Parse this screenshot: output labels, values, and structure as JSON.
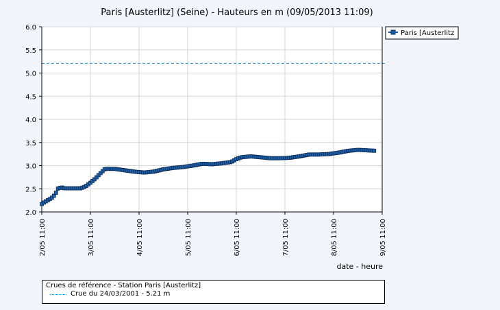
{
  "chart_data": {
    "type": "line",
    "title": "Paris [Austerlitz] (Seine) - Hauteurs en m (09/05/2013 11:09)",
    "xlabel": "date - heure",
    "ylabel": "",
    "xlim": [
      0,
      7
    ],
    "ylim": [
      2.0,
      6.0
    ],
    "x_ticks": [
      "2/05 11:00",
      "3/05 11:00",
      "4/05 11:00",
      "5/05 11:00",
      "6/05 11:00",
      "7/05 11:00",
      "8/05 11:00",
      "9/05 11:00"
    ],
    "y_ticks": [
      "2.0",
      "2.5",
      "3.0",
      "3.5",
      "4.0",
      "4.5",
      "5.0",
      "5.5",
      "6.0"
    ],
    "grid": true,
    "legend_position": "right",
    "series": [
      {
        "name": "Paris [Austerlitz",
        "color": "#1f5fa8",
        "points": [
          [
            0.0,
            2.17
          ],
          [
            0.05,
            2.21
          ],
          [
            0.12,
            2.25
          ],
          [
            0.2,
            2.3
          ],
          [
            0.28,
            2.38
          ],
          [
            0.32,
            2.5
          ],
          [
            0.4,
            2.53
          ],
          [
            0.47,
            2.51
          ],
          [
            0.6,
            2.51
          ],
          [
            0.8,
            2.51
          ],
          [
            0.9,
            2.55
          ],
          [
            1.0,
            2.63
          ],
          [
            1.1,
            2.72
          ],
          [
            1.2,
            2.83
          ],
          [
            1.3,
            2.93
          ],
          [
            1.5,
            2.93
          ],
          [
            1.7,
            2.9
          ],
          [
            1.9,
            2.87
          ],
          [
            2.1,
            2.85
          ],
          [
            2.3,
            2.87
          ],
          [
            2.5,
            2.92
          ],
          [
            2.7,
            2.95
          ],
          [
            2.9,
            2.97
          ],
          [
            3.1,
            3.0
          ],
          [
            3.3,
            3.04
          ],
          [
            3.5,
            3.03
          ],
          [
            3.7,
            3.05
          ],
          [
            3.9,
            3.08
          ],
          [
            4.0,
            3.14
          ],
          [
            4.1,
            3.18
          ],
          [
            4.3,
            3.2
          ],
          [
            4.5,
            3.18
          ],
          [
            4.7,
            3.16
          ],
          [
            4.9,
            3.16
          ],
          [
            5.1,
            3.17
          ],
          [
            5.3,
            3.2
          ],
          [
            5.5,
            3.24
          ],
          [
            5.7,
            3.24
          ],
          [
            5.9,
            3.25
          ],
          [
            6.1,
            3.28
          ],
          [
            6.3,
            3.32
          ],
          [
            6.5,
            3.34
          ],
          [
            6.7,
            3.33
          ],
          [
            6.85,
            3.32
          ]
        ]
      }
    ],
    "reference_lines": [
      {
        "name": "Crue du 24/03/2001 - 5.21 m",
        "value": 5.21,
        "color": "#1a8fd1",
        "style": "dashed"
      }
    ]
  },
  "reference_box": {
    "title": "Crues de référence - Station Paris [Austerlitz]",
    "item": "Crue du 24/03/2001 - 5.21 m"
  }
}
